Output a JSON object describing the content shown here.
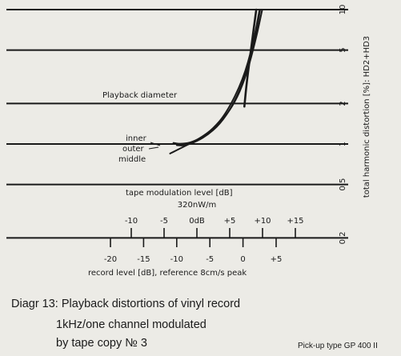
{
  "chart_data": {
    "type": "line",
    "ylabel": "total harmonic distortion [%]: HD2+HD3",
    "y_scale": "log",
    "y_ticks": [
      "0,2",
      "0,5",
      "1",
      "2",
      "5",
      "10"
    ],
    "y_tick_values": [
      0.2,
      0.5,
      1,
      2,
      5,
      10
    ],
    "ylim": [
      0.2,
      10
    ],
    "xlabel": "record level [dB], reference 8cm/s peak",
    "x_ticks": [
      "-20",
      "-15",
      "-10",
      "-5",
      "0",
      "+5"
    ],
    "x_tick_values": [
      -20,
      -15,
      -10,
      -5,
      0,
      5
    ],
    "x2_label": "tape modulation level [dB]",
    "x2_sublabel": "320nW/m",
    "x2_ticks": [
      "-10",
      "-5",
      "0dB",
      "+5",
      "+10",
      "+15"
    ],
    "x2_tick_values": [
      -10,
      -5,
      0,
      5,
      10,
      15
    ],
    "grid": "horizontal lines at each y tick",
    "series": [
      {
        "name": "Playback diameter",
        "x": [
          0.2,
          0.6,
          1.2,
          2.0
        ],
        "y": [
          1.9,
          3.0,
          5.0,
          10.0
        ]
      },
      {
        "name": "inner",
        "x": [
          -10.5,
          -9.5,
          -8.0,
          -6.5,
          -4.5,
          -2.5,
          0.0,
          1.5,
          2.5
        ],
        "y": [
          1.02,
          1.0,
          1.02,
          1.1,
          1.3,
          1.7,
          3.0,
          5.5,
          10.0
        ]
      },
      {
        "name": "outer",
        "x": [
          -10.0,
          -9.0,
          -7.5,
          -5.5,
          -3.5,
          -1.5,
          0.5,
          1.8,
          2.6
        ],
        "y": [
          0.98,
          0.97,
          1.02,
          1.15,
          1.4,
          1.95,
          3.3,
          6.0,
          10.0
        ]
      },
      {
        "name": "middle",
        "x": [
          -11.0,
          -10.0,
          -8.5,
          -6.5,
          -4.0,
          -1.5,
          0.5,
          2.0,
          2.9
        ],
        "y": [
          0.85,
          0.9,
          0.98,
          1.1,
          1.35,
          1.9,
          3.2,
          6.2,
          10.0
        ]
      }
    ]
  },
  "caption": {
    "line1": "Diagr 13: Playback distortions of vinyl record",
    "line2": "1kHz/one channel modulated",
    "line3": "by tape copy  № 3",
    "pickup": "Pick-up type GP 400 II"
  },
  "colors": {
    "ink": "#1a1a1a",
    "paper": "#ecebe6"
  }
}
